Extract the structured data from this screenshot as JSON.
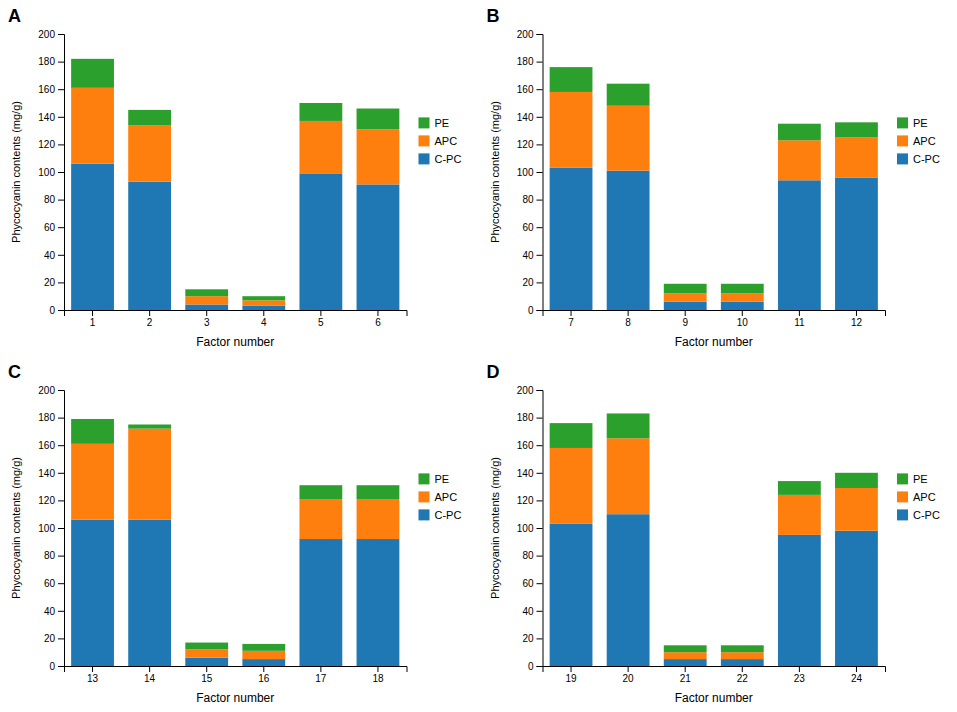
{
  "chart_data": [
    {
      "type": "bar",
      "stacked": true,
      "title": "A",
      "xlabel": "Factor number",
      "ylabel": "Phycocyanin contents (mg/g)",
      "categories": [
        "1",
        "2",
        "3",
        "4",
        "5",
        "6"
      ],
      "series": [
        {
          "name": "C-PC",
          "values": [
            106,
            93,
            4,
            3,
            99,
            91
          ]
        },
        {
          "name": "APC",
          "values": [
            55,
            41,
            6,
            4,
            38,
            40
          ]
        },
        {
          "name": "PE",
          "values": [
            21,
            11,
            5,
            3,
            13,
            15
          ]
        }
      ],
      "ylim": [
        0,
        200
      ],
      "yticks": [
        0,
        20,
        40,
        60,
        80,
        100,
        120,
        140,
        160,
        180,
        200
      ],
      "grid": false,
      "legend": "right"
    },
    {
      "type": "bar",
      "stacked": true,
      "title": "B",
      "xlabel": "Factor number",
      "ylabel": "Phycocyanin contents (mg/g)",
      "categories": [
        "7",
        "8",
        "9",
        "10",
        "11",
        "12"
      ],
      "series": [
        {
          "name": "C-PC",
          "values": [
            103,
            101,
            6,
            6,
            94,
            96
          ]
        },
        {
          "name": "APC",
          "values": [
            55,
            47,
            6,
            6,
            29,
            29
          ]
        },
        {
          "name": "PE",
          "values": [
            18,
            16,
            7,
            7,
            12,
            11
          ]
        }
      ],
      "ylim": [
        0,
        200
      ],
      "yticks": [
        0,
        20,
        40,
        60,
        80,
        100,
        120,
        140,
        160,
        180,
        200
      ],
      "grid": false,
      "legend": "right"
    },
    {
      "type": "bar",
      "stacked": true,
      "title": "C",
      "xlabel": "Factor number",
      "ylabel": "Phycocyanin contents (mg/g)",
      "categories": [
        "13",
        "14",
        "15",
        "16",
        "17",
        "18"
      ],
      "series": [
        {
          "name": "C-PC",
          "values": [
            106,
            106,
            6,
            5,
            92,
            92
          ]
        },
        {
          "name": "APC",
          "values": [
            55,
            66,
            6,
            6,
            29,
            29
          ]
        },
        {
          "name": "PE",
          "values": [
            18,
            3,
            5,
            5,
            10,
            10
          ]
        }
      ],
      "ylim": [
        0,
        200
      ],
      "yticks": [
        0,
        20,
        40,
        60,
        80,
        100,
        120,
        140,
        160,
        180,
        200
      ],
      "grid": false,
      "legend": "right"
    },
    {
      "type": "bar",
      "stacked": true,
      "title": "D",
      "xlabel": "Factor number",
      "ylabel": "Phycocyanin contents (mg/g)",
      "categories": [
        "19",
        "20",
        "21",
        "22",
        "23",
        "24"
      ],
      "series": [
        {
          "name": "C-PC",
          "values": [
            103,
            110,
            5,
            5,
            95,
            98
          ]
        },
        {
          "name": "APC",
          "values": [
            55,
            55,
            5,
            5,
            29,
            31
          ]
        },
        {
          "name": "PE",
          "values": [
            18,
            18,
            5,
            5,
            10,
            11
          ]
        }
      ],
      "ylim": [
        0,
        200
      ],
      "yticks": [
        0,
        20,
        40,
        60,
        80,
        100,
        120,
        140,
        160,
        180,
        200
      ],
      "grid": false,
      "legend": "right"
    }
  ]
}
